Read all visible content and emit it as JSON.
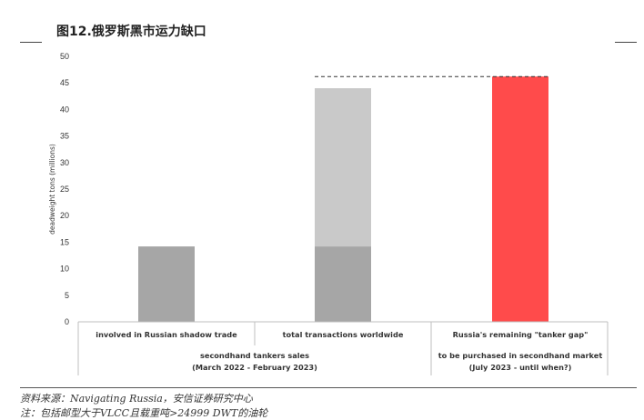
{
  "page": {
    "title": "图12.俄罗斯黑市运力缺口",
    "source": "资料来源：Navigating Russia，安信证券研究中心",
    "note": "注：包括邮型大于VLCC且载重吨>24999 DWT的油轮"
  },
  "chart_data": {
    "type": "bar",
    "ylabel": "deadweight tons (millions)",
    "ylim": [
      0,
      50
    ],
    "yticks": [
      0,
      5,
      10,
      15,
      20,
      25,
      30,
      35,
      40,
      45,
      50
    ],
    "grid": false,
    "categories": [
      "involved in Russian shadow trade",
      "total transactions worldwide",
      "Russia's remaining \"tanker gap\""
    ],
    "group_labels": [
      {
        "lines": [
          "secondhand tankers sales",
          "(March 2022 - February 2023)"
        ]
      },
      {
        "lines": [
          "to be purchased in secondhand market",
          "(July 2023 - until when?)"
        ]
      }
    ],
    "bars": [
      {
        "category": "involved in Russian shadow trade",
        "segments": [
          {
            "value": 14.2,
            "color": "#a6a6a6"
          }
        ]
      },
      {
        "category": "total transactions worldwide",
        "segments": [
          {
            "value": 14.2,
            "color": "#a6a6a6"
          },
          {
            "value": 29.8,
            "color": "#c9c9c9"
          }
        ]
      },
      {
        "category": "Russia's remaining \"tanker gap\"",
        "segments": [
          {
            "value": 46.2,
            "color": "#ff4b4b"
          }
        ]
      }
    ],
    "reference_line": {
      "value": 46.2,
      "style": "dashed"
    }
  }
}
